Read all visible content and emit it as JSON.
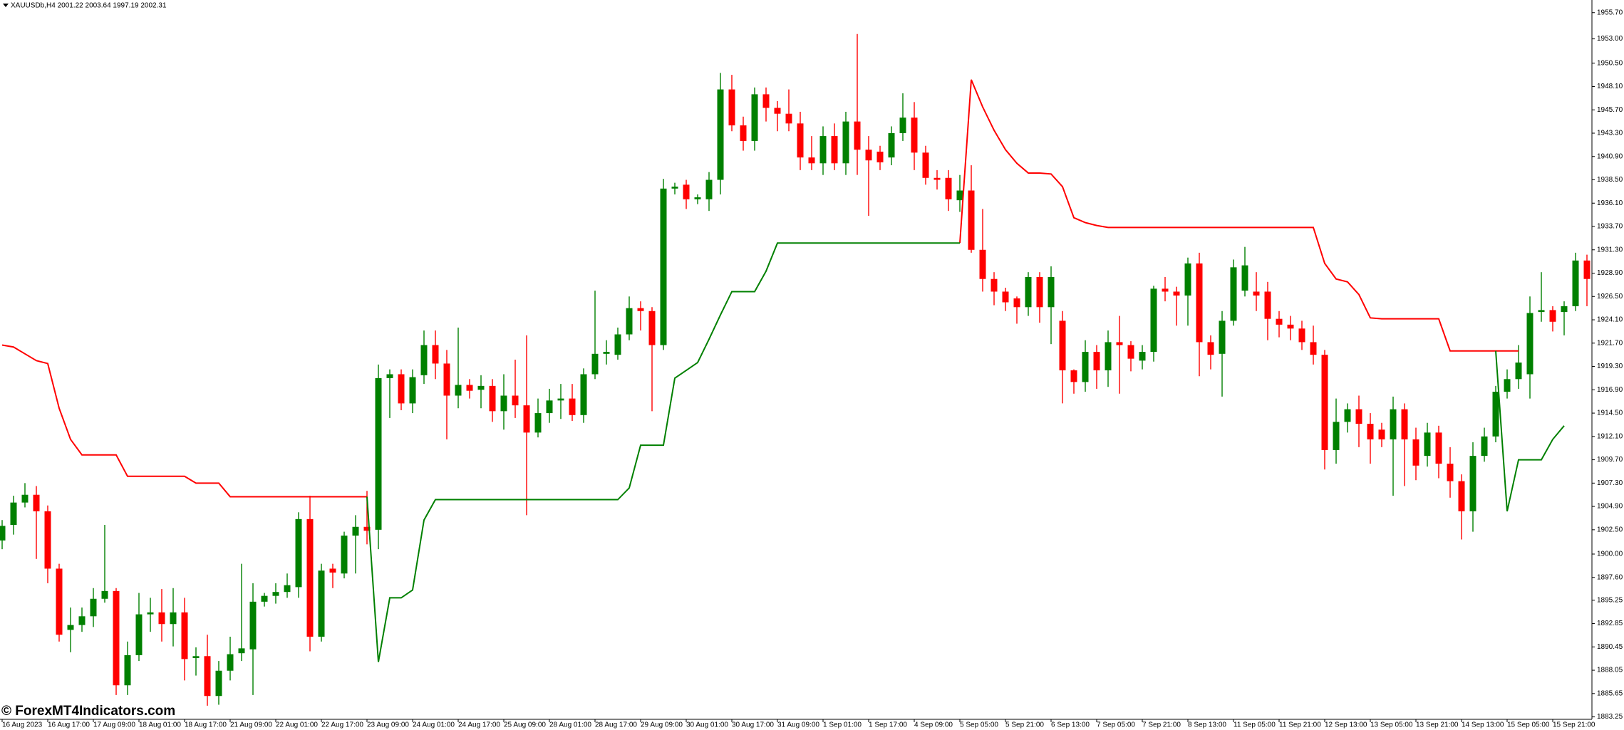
{
  "chart_data": {
    "type": "candlestick",
    "title": "XAUUSDb,H4  2001.22 2003.64 1997.19 2002.31",
    "watermark": "© ForexMT4Indicators.com",
    "up_color": "#008000",
    "down_color": "#ff0000",
    "ylim": [
      1883.0,
      1957.0
    ],
    "yticks": [
      {
        "value": 1955.7,
        "label": "1955.70"
      },
      {
        "value": 1953,
        "label": "1953.00"
      },
      {
        "value": 1950.5,
        "label": "1950.50"
      },
      {
        "value": 1948.1,
        "label": "1948.10"
      },
      {
        "value": 1945.7,
        "label": "1945.70"
      },
      {
        "value": 1943.3,
        "label": "1943.30"
      },
      {
        "value": 1940.9,
        "label": "1940.90"
      },
      {
        "value": 1938.5,
        "label": "1938.50"
      },
      {
        "value": 1936.1,
        "label": "1936.10"
      },
      {
        "value": 1933.7,
        "label": "1933.70"
      },
      {
        "value": 1931.3,
        "label": "1931.30"
      },
      {
        "value": 1928.9,
        "label": "1928.90"
      },
      {
        "value": 1926.5,
        "label": "1926.50"
      },
      {
        "value": 1924.1,
        "label": "1924.10"
      },
      {
        "value": 1921.7,
        "label": "1921.70"
      },
      {
        "value": 1919.3,
        "label": "1919.30"
      },
      {
        "value": 1916.9,
        "label": "1916.90"
      },
      {
        "value": 1914.5,
        "label": "1914.50"
      },
      {
        "value": 1912.1,
        "label": "1912.10"
      },
      {
        "value": 1909.7,
        "label": "1909.70"
      },
      {
        "value": 1907.3,
        "label": "1907.30"
      },
      {
        "value": 1904.9,
        "label": "1904.90"
      },
      {
        "value": 1902.5,
        "label": "1902.50"
      },
      {
        "value": 1900,
        "label": "1900.00"
      },
      {
        "value": 1897.6,
        "label": "1897.60"
      },
      {
        "value": 1895.25,
        "label": "1895.25"
      },
      {
        "value": 1892.85,
        "label": "1892.85"
      },
      {
        "value": 1890.45,
        "label": "1890.45"
      },
      {
        "value": 1888.05,
        "label": "1888.05"
      },
      {
        "value": 1885.65,
        "label": "1885.65"
      },
      {
        "value": 1883.25,
        "label": "1883.25"
      }
    ],
    "categories": [
      "16 Aug 2023",
      null,
      null,
      null,
      "16 Aug 17:00",
      null,
      null,
      null,
      "17 Aug 09:00",
      null,
      null,
      null,
      "18 Aug 01:00",
      null,
      null,
      null,
      "18 Aug 17:00",
      null,
      null,
      null,
      "21 Aug 09:00",
      null,
      null,
      null,
      "22 Aug 01:00",
      null,
      null,
      null,
      "22 Aug 17:00",
      null,
      null,
      null,
      "23 Aug 09:00",
      null,
      null,
      null,
      "24 Aug 01:00",
      null,
      null,
      null,
      "24 Aug 17:00",
      null,
      null,
      null,
      "25 Aug 09:00",
      null,
      null,
      null,
      "28 Aug 01:00",
      null,
      null,
      null,
      "28 Aug 17:00",
      null,
      null,
      null,
      "29 Aug 09:00",
      null,
      null,
      null,
      "30 Aug 01:00",
      null,
      null,
      null,
      "30 Aug 17:00",
      null,
      null,
      null,
      "31 Aug 09:00",
      null,
      null,
      null,
      "1 Sep 01:00",
      null,
      null,
      null,
      "1 Sep 17:00",
      null,
      null,
      null,
      "4 Sep 09:00",
      null,
      null,
      null,
      "5 Sep 05:00",
      null,
      null,
      null,
      "5 Sep 21:00",
      null,
      null,
      null,
      "6 Sep 13:00",
      null,
      null,
      null,
      "7 Sep 05:00",
      null,
      null,
      null,
      "7 Sep 21:00",
      null,
      null,
      null,
      "8 Sep 13:00",
      null,
      null,
      null,
      "11 Sep 05:00",
      null,
      null,
      null,
      "11 Sep 21:00",
      null,
      null,
      null,
      "12 Sep 13:00",
      null,
      null,
      null,
      "13 Sep 05:00",
      null,
      null,
      null,
      "13 Sep 21:00",
      null,
      null,
      null,
      "14 Sep 13:00",
      null,
      null,
      null,
      "15 Sep 05:00",
      null,
      null,
      null,
      "15 Sep 21:00",
      null,
      null,
      null
    ],
    "open": [
      1901.4,
      1903.0,
      1905.3,
      1906.1,
      1904.4,
      1898.5,
      1892.2,
      1892.7,
      1893.6,
      1895.4,
      1896.2,
      1886.5,
      1889.6,
      1893.8,
      1894.0,
      1892.8,
      1894.0,
      1889.3,
      1889.5,
      1885.4,
      1888.0,
      1889.8,
      1890.2,
      1895.1,
      1895.7,
      1896.1,
      1896.6,
      1903.6,
      1891.5,
      1898.5,
      1898.0,
      1901.9,
      1902.8,
      1902.5,
      1918.1,
      1918.5,
      1915.5,
      1918.4,
      1921.5,
      1919.6,
      1916.3,
      1917.4,
      1916.9,
      1917.3,
      1914.7,
      1916.3,
      1915.3,
      1912.5,
      1914.5,
      1915.8,
      1916.0,
      1914.3,
      1918.5,
      1920.6,
      1920.5,
      1922.6,
      1925.3,
      1925.0,
      1921.5,
      1937.6,
      1938.0,
      1936.5,
      1936.5,
      1938.5,
      1947.8,
      1944.1,
      1942.5,
      1947.3,
      1945.9,
      1945.3,
      1944.3,
      1940.8,
      1940.2,
      1943.0,
      1940.2,
      1944.5,
      1941.6,
      1941.4,
      1940.8,
      1943.3,
      1944.9,
      1941.3,
      1938.7,
      1938.7,
      1936.4,
      1937.4,
      1931.3,
      1928.3,
      1927.0,
      1926.3,
      1925.4,
      1928.5,
      1925.4,
      1924.0,
      1918.9,
      1917.7,
      1920.8,
      1918.9,
      1921.8,
      1921.5,
      1919.9,
      1920.8,
      1927.3,
      1927.0,
      1926.6,
      1929.9,
      1921.8,
      1920.6,
      1924.0,
      1927.1,
      1927.0,
      1927.0,
      1924.2,
      1923.6,
      1923.2,
      1921.8,
      1920.5,
      1910.7,
      1913.6,
      1914.9,
      1913.4,
      1912.8,
      1911.8,
      1914.9,
      1911.8,
      1910.1,
      1912.5,
      1909.3,
      1907.5,
      1904.4,
      1910.1,
      1912.1,
      1916.7,
      1918.0,
      1918.5,
      1924.9,
      1925.1,
      1924.9,
      1925.5,
      1930.2
    ],
    "high": [
      1903.5,
      1906.0,
      1907.3,
      1907.0,
      1905.0,
      1899.0,
      1894.5,
      1894.5,
      1896.5,
      1903.0,
      1896.5,
      1891.0,
      1896.0,
      1895.5,
      1896.4,
      1896.5,
      1895.5,
      1890.4,
      1891.7,
      1889.0,
      1891.5,
      1899.0,
      1897.0,
      1896.0,
      1897.0,
      1898.0,
      1904.3,
      1906.0,
      1899.0,
      1899.0,
      1902.3,
      1904.0,
      1906.5,
      1919.5,
      1919.0,
      1919.0,
      1919.0,
      1923.0,
      1923.0,
      1921.0,
      1923.3,
      1918.0,
      1918.4,
      1918.0,
      1918.5,
      1920.0,
      1922.5,
      1916.0,
      1917.0,
      1917.5,
      1917.5,
      1919.1,
      1927.1,
      1922.0,
      1923.3,
      1926.5,
      1926.0,
      1925.4,
      1938.6,
      1938.2,
      1938.5,
      1937.0,
      1939.3,
      1949.5,
      1949.3,
      1945.0,
      1948.0,
      1948.0,
      1946.6,
      1947.8,
      1945.5,
      1943.0,
      1944.0,
      1944.3,
      1945.5,
      1953.5,
      1943.0,
      1942.0,
      1944.0,
      1947.4,
      1946.5,
      1942.0,
      1939.5,
      1939.5,
      1939.0,
      1940.0,
      1935.5,
      1929.0,
      1927.4,
      1926.5,
      1929.0,
      1929.0,
      1929.6,
      1925.0,
      1919.0,
      1922.0,
      1921.5,
      1923.0,
      1924.5,
      1921.9,
      1921.5,
      1927.6,
      1928.5,
      1927.5,
      1930.5,
      1931.0,
      1922.5,
      1925.0,
      1930.3,
      1931.6,
      1929.0,
      1928.0,
      1925.0,
      1924.5,
      1924.0,
      1923.5,
      1921.0,
      1916.0,
      1915.5,
      1916.3,
      1914.5,
      1913.5,
      1916.2,
      1915.5,
      1913.0,
      1913.5,
      1913.2,
      1911.0,
      1908.2,
      1911.5,
      1913.0,
      1917.3,
      1919.0,
      1921.5,
      1926.5,
      1929.0,
      1925.5,
      1926.0,
      1931.0,
      1930.8
    ],
    "low": [
      1900.5,
      1902.0,
      1904.8,
      1899.5,
      1897.0,
      1891.0,
      1889.9,
      1892.0,
      1892.5,
      1895.0,
      1885.5,
      1885.5,
      1889.0,
      1892.0,
      1891.0,
      1890.5,
      1887.0,
      1887.5,
      1884.4,
      1884.5,
      1887.0,
      1889.0,
      1885.5,
      1894.6,
      1894.9,
      1895.5,
      1895.5,
      1890.0,
      1891.0,
      1896.5,
      1897.5,
      1898.0,
      1901.0,
      1900.5,
      1914.0,
      1914.8,
      1914.5,
      1917.5,
      1918.0,
      1911.8,
      1915.0,
      1916.0,
      1915.0,
      1913.6,
      1912.8,
      1914.0,
      1904.0,
      1912.0,
      1913.5,
      1913.9,
      1913.7,
      1913.5,
      1918.0,
      1919.5,
      1920.0,
      1922.0,
      1923.0,
      1914.7,
      1921.0,
      1937.0,
      1935.5,
      1936.0,
      1935.3,
      1937.0,
      1943.5,
      1941.5,
      1941.5,
      1944.5,
      1943.5,
      1943.5,
      1939.5,
      1939.5,
      1939.0,
      1939.5,
      1939.0,
      1939.0,
      1934.8,
      1939.5,
      1940.0,
      1942.5,
      1939.5,
      1938.0,
      1937.5,
      1935.3,
      1935.2,
      1931.0,
      1927.0,
      1925.6,
      1925.0,
      1923.7,
      1924.5,
      1923.8,
      1921.6,
      1915.5,
      1916.5,
      1916.7,
      1917.0,
      1917.2,
      1916.5,
      1918.8,
      1919.0,
      1919.8,
      1926.0,
      1923.5,
      1923.5,
      1918.3,
      1919.0,
      1916.2,
      1923.5,
      1926.5,
      1925.0,
      1922.0,
      1922.3,
      1922.0,
      1921.0,
      1919.5,
      1908.7,
      1909.3,
      1912.5,
      1911.0,
      1909.3,
      1911.0,
      1906.0,
      1907.0,
      1907.6,
      1909.0,
      1907.8,
      1905.8,
      1901.5,
      1902.3,
      1909.5,
      1911.5,
      1916.0,
      1917.0,
      1916.0,
      1923.9,
      1922.9,
      1922.5,
      1925.0,
      1925.5
    ],
    "close": [
      1902.9,
      1905.3,
      1906.1,
      1904.4,
      1898.5,
      1891.7,
      1892.7,
      1893.6,
      1895.4,
      1896.2,
      1886.5,
      1889.6,
      1893.8,
      1894.0,
      1892.8,
      1894.0,
      1889.2,
      1889.5,
      1885.4,
      1888.0,
      1889.7,
      1890.3,
      1895.1,
      1895.7,
      1896.1,
      1896.8,
      1903.6,
      1891.5,
      1898.3,
      1898.1,
      1901.9,
      1902.8,
      1902.4,
      1918.1,
      1918.5,
      1915.5,
      1918.2,
      1921.5,
      1919.6,
      1916.3,
      1917.4,
      1916.8,
      1917.3,
      1914.7,
      1916.3,
      1915.3,
      1912.5,
      1914.5,
      1915.8,
      1916.0,
      1914.3,
      1918.5,
      1920.6,
      1920.8,
      1922.6,
      1925.3,
      1925.0,
      1921.5,
      1937.6,
      1937.8,
      1936.5,
      1936.7,
      1938.5,
      1947.8,
      1944.1,
      1942.5,
      1947.3,
      1945.9,
      1945.3,
      1944.3,
      1940.8,
      1940.2,
      1943.0,
      1940.2,
      1944.5,
      1941.6,
      1940.5,
      1940.3,
      1943.3,
      1944.9,
      1941.3,
      1938.7,
      1938.5,
      1936.5,
      1937.4,
      1931.3,
      1928.3,
      1927.0,
      1925.9,
      1925.4,
      1928.5,
      1925.4,
      1928.5,
      1918.9,
      1917.7,
      1920.8,
      1918.9,
      1921.8,
      1921.5,
      1920.1,
      1920.8,
      1927.3,
      1927.0,
      1926.6,
      1929.9,
      1921.8,
      1920.5,
      1924.0,
      1929.5,
      1929.7,
      1926.6,
      1924.2,
      1923.6,
      1923.2,
      1921.8,
      1920.5,
      1910.7,
      1913.6,
      1914.9,
      1913.4,
      1911.8,
      1911.8,
      1914.9,
      1911.8,
      1909.1,
      1912.5,
      1909.3,
      1907.5,
      1904.4,
      1910.1,
      1912.1,
      1916.7,
      1918.0,
      1919.7,
      1924.8,
      1925.1,
      1923.9,
      1925.5,
      1930.2,
      1928.3
    ],
    "lines": [
      {
        "color": "#ff0000",
        "values": [
          1921.5,
          1921.3,
          1920.6,
          1919.9,
          1919.6,
          1915.0,
          1911.8,
          1910.2,
          1910.2,
          1910.2,
          1910.2,
          1908.0,
          1908.0,
          1908.0,
          1908.0,
          1908.0,
          1908.0,
          1907.3,
          1907.3,
          1907.3,
          1905.9,
          1905.9,
          1905.9,
          1905.9,
          1905.9,
          1905.9,
          1905.9,
          1905.9,
          1905.9,
          1905.9,
          1905.9,
          1905.9,
          1905.9,
          null,
          null,
          null,
          null,
          null,
          null,
          null,
          null,
          null,
          null,
          null,
          null,
          null,
          null,
          null,
          null,
          null,
          null,
          null,
          null,
          null,
          null,
          null,
          null,
          null,
          null,
          null,
          null,
          null,
          null,
          null,
          null,
          null,
          null,
          null,
          null,
          null,
          null,
          null,
          null,
          null,
          null,
          null,
          null,
          null,
          null,
          null,
          null,
          null,
          null,
          null,
          1932.0,
          1948.8,
          1946.0,
          1943.6,
          1941.6,
          1940.2,
          1939.2,
          1939.2,
          1939.1,
          1937.8,
          1934.6,
          1934.1,
          1933.8,
          1933.6,
          1933.6,
          1933.6,
          1933.6,
          1933.6,
          1933.6,
          1933.6,
          1933.6,
          1933.6,
          1933.6,
          1933.6,
          1933.6,
          1933.6,
          1933.6,
          1933.6,
          1933.6,
          1933.6,
          1933.6,
          1933.6,
          1929.9,
          1928.3,
          1928.0,
          1926.7,
          1924.3,
          1924.2,
          1924.2,
          1924.2,
          1924.2,
          1924.2,
          1924.2,
          1920.9,
          1920.9,
          1920.9,
          1920.9,
          1920.9,
          1920.9,
          1920.9,
          null,
          null,
          null,
          null,
          null,
          null
        ]
      },
      {
        "color": "#008000",
        "values": [
          null,
          null,
          null,
          null,
          null,
          null,
          null,
          null,
          null,
          null,
          null,
          null,
          null,
          null,
          null,
          null,
          null,
          null,
          null,
          null,
          null,
          null,
          null,
          null,
          null,
          null,
          null,
          null,
          null,
          null,
          null,
          null,
          1905.9,
          1888.9,
          1895.5,
          1895.5,
          1896.3,
          1903.5,
          1905.6,
          1905.6,
          1905.6,
          1905.6,
          1905.6,
          1905.6,
          1905.6,
          1905.6,
          1905.6,
          1905.6,
          1905.6,
          1905.6,
          1905.6,
          1905.6,
          1905.6,
          1905.6,
          1905.6,
          1906.8,
          1911.2,
          1911.2,
          1911.2,
          1918.1,
          1918.9,
          1919.7,
          1922.1,
          1924.6,
          1927.0,
          1927.0,
          1927.0,
          1929.1,
          1932.0,
          1932.0,
          1932.0,
          1932.0,
          1932.0,
          1932.0,
          1932.0,
          1932.0,
          1932.0,
          1932.0,
          1932.0,
          1932.0,
          1932.0,
          1932.0,
          1932.0,
          1932.0,
          1932.0,
          null,
          null,
          null,
          null,
          null,
          null,
          null,
          null,
          null,
          null,
          null,
          null,
          null,
          null,
          null,
          null,
          null,
          null,
          null,
          null,
          null,
          null,
          null,
          null,
          null,
          null,
          null,
          null,
          null,
          null,
          null,
          null,
          null,
          null,
          null,
          null,
          null,
          null,
          null,
          null,
          null,
          null,
          null,
          null,
          null,
          null,
          1920.9,
          1904.4,
          1909.7,
          1909.7,
          1909.7,
          1911.8,
          1913.2
        ]
      }
    ]
  }
}
